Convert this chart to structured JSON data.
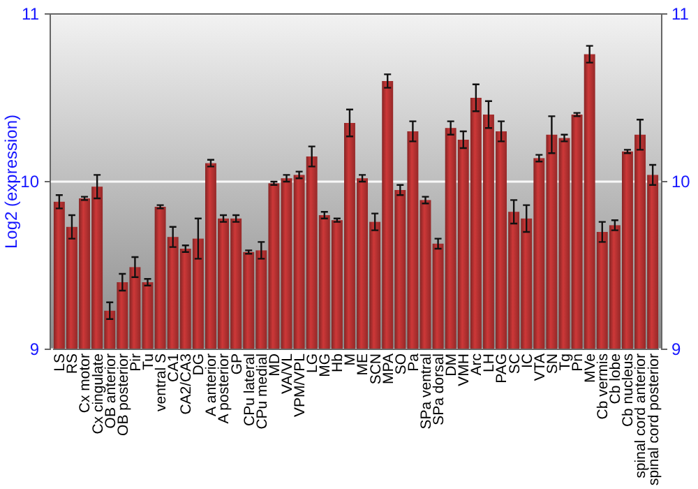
{
  "chart_data": {
    "type": "bar",
    "ylabel": "Log2 (expression)",
    "categories": [
      "LS",
      "RS",
      "Cx motor",
      "Cx cingulate",
      "OB anterior",
      "OB posterior",
      "Pir",
      "Tu",
      "ventral S",
      "CA1",
      "CA2/CA3",
      "DG",
      "A anterior",
      "A posterior",
      "GP",
      "CPu lateral",
      "CPu medial",
      "MD",
      "VA/VL",
      "VPM/VPL",
      "LG",
      "MG",
      "Hb",
      "M",
      "ME",
      "SCN",
      "MPA",
      "SO",
      "Pa",
      "SPa ventral",
      "SPa dorsal",
      "DM",
      "VMH",
      "Arc",
      "LH",
      "PAG",
      "SC",
      "IC",
      "VTA",
      "SN",
      "Tg",
      "Pn",
      "MVe",
      "Cb vermis",
      "Cb lobe",
      "Cb nucleus",
      "spinal cord anterior",
      "spinal cord posterior"
    ],
    "values": [
      9.88,
      9.73,
      9.9,
      9.97,
      9.23,
      9.4,
      9.49,
      9.4,
      9.85,
      9.67,
      9.6,
      9.66,
      10.11,
      9.78,
      9.78,
      9.58,
      9.59,
      9.99,
      10.02,
      10.04,
      10.15,
      9.8,
      9.77,
      10.35,
      10.02,
      9.76,
      10.6,
      9.95,
      10.3,
      9.89,
      9.63,
      10.32,
      10.25,
      10.5,
      10.4,
      10.3,
      9.82,
      9.78,
      10.14,
      10.28,
      10.26,
      10.4,
      10.76,
      9.7,
      9.74,
      10.18,
      10.28,
      10.04
    ],
    "errors": [
      0.04,
      0.07,
      0.01,
      0.07,
      0.05,
      0.05,
      0.06,
      0.02,
      0.01,
      0.06,
      0.02,
      0.12,
      0.02,
      0.02,
      0.02,
      0.01,
      0.05,
      0.01,
      0.02,
      0.02,
      0.06,
      0.02,
      0.01,
      0.08,
      0.02,
      0.05,
      0.04,
      0.03,
      0.06,
      0.02,
      0.03,
      0.04,
      0.05,
      0.08,
      0.08,
      0.06,
      0.07,
      0.08,
      0.02,
      0.11,
      0.02,
      0.01,
      0.05,
      0.06,
      0.03,
      0.01,
      0.09,
      0.06
    ],
    "color": "#b83232",
    "ylim": [
      9,
      11
    ],
    "yticks": [
      9,
      10,
      11
    ],
    "y2lim": [
      9,
      11
    ],
    "y2ticks": [
      9,
      10,
      11
    ],
    "grid": "y"
  }
}
